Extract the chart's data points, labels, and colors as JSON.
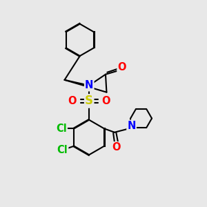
{
  "background_color": "#e8e8e8",
  "bond_color": "#000000",
  "atom_colors": {
    "N": "#0000ff",
    "O": "#ff0000",
    "S": "#cccc00",
    "Cl": "#00bb00",
    "C": "#000000"
  },
  "font_size_atom": 10.5,
  "fig_width": 3.0,
  "fig_height": 3.0,
  "dpi": 100
}
